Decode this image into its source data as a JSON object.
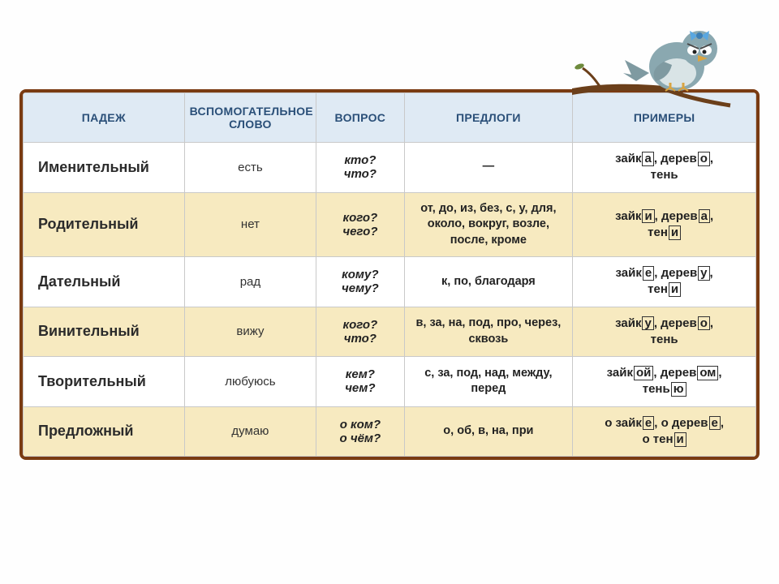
{
  "frame": {
    "border_color": "#7a3b12",
    "header_bg": "#dfeaf4",
    "alt_row_bg": "#f7eac0"
  },
  "headers": {
    "case": "ПАДЕЖ",
    "helper": "ВСПОМОГАТЕЛЬНОЕ СЛОВО",
    "question": "ВОПРОС",
    "preps": "ПРЕДЛОГИ",
    "examples": "ПРИМЕРЫ"
  },
  "rows": [
    {
      "case": "Именительный",
      "helper": "есть",
      "question_l1": "кто?",
      "question_l2": "что?",
      "preps": "—",
      "ex": [
        {
          "stem": "зайк",
          "end": "а",
          "tail": ", "
        },
        {
          "stem": "дерев",
          "end": "о",
          "tail": ", "
        },
        {
          "br": true
        },
        {
          "stem": "тень",
          "end": "",
          "tail": ""
        }
      ]
    },
    {
      "case": "Родительный",
      "helper": "нет",
      "question_l1": "кого?",
      "question_l2": "чего?",
      "preps": "от, до, из, без, с, у, для, около, вокруг, возле, после, кроме",
      "ex": [
        {
          "stem": "зайк",
          "end": "и",
          "tail": ", "
        },
        {
          "stem": "дерев",
          "end": "а",
          "tail": ", "
        },
        {
          "br": true
        },
        {
          "stem": "тен",
          "end": "и",
          "tail": ""
        }
      ]
    },
    {
      "case": "Дательный",
      "helper": "рад",
      "question_l1": "кому?",
      "question_l2": "чему?",
      "preps": "к, по, благодаря",
      "ex": [
        {
          "stem": "зайк",
          "end": "е",
          "tail": ", "
        },
        {
          "stem": "дерев",
          "end": "у",
          "tail": ", "
        },
        {
          "br": true
        },
        {
          "stem": "тен",
          "end": "и",
          "tail": ""
        }
      ]
    },
    {
      "case": "Винительный",
      "helper": "вижу",
      "question_l1": "кого?",
      "question_l2": "что?",
      "preps": "в, за, на, под, про, через, сквозь",
      "ex": [
        {
          "stem": "зайк",
          "end": "у",
          "tail": ", "
        },
        {
          "stem": "дерев",
          "end": "о",
          "tail": ", "
        },
        {
          "br": true
        },
        {
          "stem": "тень",
          "end": "",
          "tail": ""
        }
      ]
    },
    {
      "case": "Творительный",
      "helper": "любуюсь",
      "question_l1": "кем?",
      "question_l2": "чем?",
      "preps": "с, за, под, над, между, перед",
      "ex": [
        {
          "stem": "зайк",
          "end": "ой",
          "tail": ", "
        },
        {
          "stem": "дерев",
          "end": "ом",
          "tail": ", "
        },
        {
          "br": true
        },
        {
          "stem": "тень",
          "end": "ю",
          "tail": ""
        }
      ]
    },
    {
      "case": "Предложный",
      "helper": "думаю",
      "question_l1": "о ком?",
      "question_l2": "о чём?",
      "preps": "о, об, в, на, при",
      "ex": [
        {
          "stem": "о зайк",
          "end": "е",
          "tail": ", "
        },
        {
          "stem": "о дерев",
          "end": "е",
          "tail": ", "
        },
        {
          "br": true
        },
        {
          "stem": "о тен",
          "end": "и",
          "tail": ""
        }
      ]
    }
  ],
  "bird": {
    "body_color": "#8aa8b0",
    "belly_color": "#d9e4e6",
    "beak_color": "#d9a441",
    "branch_color": "#6b3f1a",
    "bow_color": "#5aa7e0",
    "eye_white": "#ffffff",
    "eye_dark": "#222222",
    "leaf_color": "#6e8b3d"
  }
}
